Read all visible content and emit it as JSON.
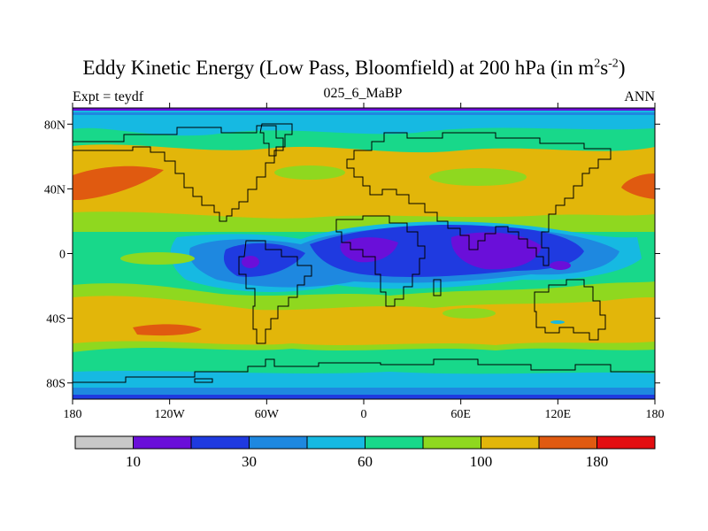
{
  "title_main": "Eddy Kinetic Energy (Low Pass, Bloomfield) at 200 hPa (in m",
  "title_sup1": "2",
  "title_mid": "s",
  "title_sup2": "-2",
  "title_end": ")",
  "subtitle_left": "Expt = teydf",
  "subtitle_center": "025_6_MaBP",
  "subtitle_right": "ANN",
  "map": {
    "lon_ticks": [
      "180",
      "120W",
      "60W",
      "0",
      "60E",
      "120E",
      "180"
    ],
    "lat_ticks": [
      "80N",
      "40N",
      "0",
      "40S",
      "80S"
    ],
    "lat_tick_values": [
      80,
      40,
      0,
      -40,
      -80
    ]
  },
  "colorbar": {
    "colors": [
      "#c8c8c8",
      "#6a0fd9",
      "#1f3ae0",
      "#1e88e0",
      "#16b9e2",
      "#18d88a",
      "#8fd81f",
      "#e2b60a",
      "#e05a10",
      "#e30e10"
    ],
    "labels": [
      "10",
      "30",
      "60",
      "100",
      "180"
    ]
  }
}
